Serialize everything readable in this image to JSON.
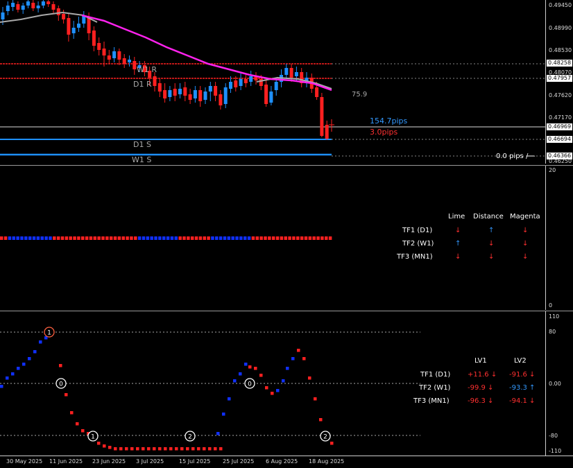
{
  "main": {
    "price_axis": [
      "0.49450",
      "0.48990",
      "0.48530",
      "0.48070",
      "0.47620",
      "0.47170",
      "0.46250"
    ],
    "price_boxes": [
      {
        "text": "0.48258",
        "color": "#ffffff"
      },
      {
        "text": "0.47957",
        "color": "#ffffff"
      },
      {
        "text": "0.46969",
        "color": "#ffffff"
      },
      {
        "text": "0.46694",
        "color": "#ffffff"
      },
      {
        "text": "0.46366",
        "color": "#ffffff"
      }
    ],
    "levels": {
      "w1r": "W1 R",
      "d1r": "D1 R",
      "d1s": "D1 S",
      "w1s": "W1 S"
    },
    "value_75_9": "75.9",
    "pips_blue": "154.7pips",
    "pips_red": "3.0pips",
    "pips_zero": "0.0 pips / --",
    "colors": {
      "bull": "#1e90ff",
      "bear": "#ff2020",
      "ma": "#ff22ee",
      "grey_ma": "#aaaaaa",
      "level": "#ff2020",
      "support": "#1e90ff"
    }
  },
  "ind1": {
    "axis_top": "20",
    "axis_bottom": "0",
    "header": [
      "Lime",
      "Distance",
      "Magenta"
    ],
    "rows": [
      {
        "label": "TF1 (D1)",
        "lime": "↓",
        "distance": "↑",
        "magenta": "↓",
        "lime_c": "#ff3030",
        "distance_c": "#3399ff",
        "magenta_c": "#ff3030"
      },
      {
        "label": "TF2 (W1)",
        "lime": "↑",
        "distance": "↓",
        "magenta": "↓",
        "lime_c": "#3399ff",
        "distance_c": "#ff3030",
        "magenta_c": "#ff3030"
      },
      {
        "label": "TF3 (MN1)",
        "lime": "↓",
        "distance": "↓",
        "magenta": "↓",
        "lime_c": "#ff3030",
        "distance_c": "#ff3030",
        "magenta_c": "#ff3030"
      }
    ]
  },
  "ind2": {
    "axis": [
      "110",
      "80",
      "0.00",
      "-80",
      "-110"
    ],
    "header": [
      "LV1",
      "LV2"
    ],
    "rows": [
      {
        "label": "TF1 (D1)",
        "lv1": "+11.6 ↓",
        "lv2": "-91.6 ↓",
        "lv1_c": "#ff3030",
        "lv2_c": "#ff3030"
      },
      {
        "label": "TF2 (W1)",
        "lv1": "-99.9 ↓",
        "lv2": "-93.3 ↑",
        "lv1_c": "#ff3030",
        "lv2_c": "#3399ff"
      },
      {
        "label": "TF3 (MN1)",
        "lv1": "-96.3 ↓",
        "lv2": "-94.1 ↓",
        "lv1_c": "#ff3030",
        "lv2_c": "#ff3030"
      }
    ],
    "markers": [
      "1",
      "0",
      "1",
      "2",
      "0",
      "2"
    ]
  },
  "dates": [
    "30 May 2025",
    "11 Jun 2025",
    "23 Jun 2025",
    "3 Jul 2025",
    "15 Jul 2025",
    "25 Jul 2025",
    "6 Aug 2025",
    "18 Aug 2025"
  ]
}
